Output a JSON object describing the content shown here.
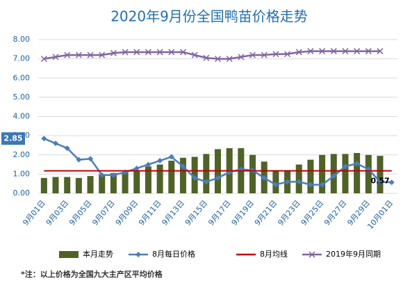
{
  "chart_data": {
    "type": "bar",
    "title": "2020年9月份全国鸭苗价格走势",
    "footnote": "*注：以上价格为全国九大主产区平均价格",
    "categories": [
      "9月01日",
      null,
      "9月03日",
      null,
      "9月05日",
      null,
      "9月07日",
      null,
      "9月09日",
      null,
      "9月11日",
      null,
      "9月13日",
      null,
      "9月15日",
      null,
      "9月17日",
      null,
      "9月19日",
      null,
      "9月21日",
      null,
      "9月23日",
      null,
      "9月25日",
      null,
      "9月27日",
      null,
      "9月29日",
      null,
      "10月01日"
    ],
    "ylim": [
      0,
      8
    ],
    "yticks": [
      {
        "value": 0,
        "label": "0.00"
      },
      {
        "value": 1,
        "label": "1.00"
      },
      {
        "value": 2,
        "label": "2.00"
      },
      {
        "value": 3,
        "label": "3.00"
      },
      {
        "value": 4,
        "label": "4.00"
      },
      {
        "value": 5,
        "label": "5.00"
      },
      {
        "value": 6,
        "label": "6.00"
      },
      {
        "value": 7,
        "label": "7.00"
      },
      {
        "value": 8,
        "label": "8.00"
      }
    ],
    "grid": true,
    "legend": "bottom",
    "series": [
      {
        "name": "本月走势",
        "type": "bar",
        "color": "#4f6228",
        "values": [
          0.8,
          0.85,
          0.85,
          0.8,
          0.9,
          1.0,
          1.05,
          1.1,
          1.2,
          1.4,
          1.5,
          1.7,
          1.85,
          1.9,
          2.05,
          2.3,
          2.35,
          2.35,
          2.0,
          1.65,
          1.2,
          1.2,
          1.5,
          1.75,
          2.0,
          2.05,
          2.05,
          2.1,
          2.0,
          1.95,
          null
        ]
      },
      {
        "name": "8月每日价格",
        "type": "line",
        "marker": "diamond",
        "color": "#4a7ebb",
        "values": [
          2.85,
          2.6,
          2.35,
          1.75,
          1.8,
          0.95,
          0.95,
          1.1,
          1.3,
          1.5,
          1.7,
          1.9,
          1.4,
          0.8,
          0.6,
          0.8,
          1.1,
          1.25,
          1.2,
          0.8,
          0.45,
          0.6,
          0.6,
          0.45,
          0.45,
          0.9,
          1.4,
          1.55,
          1.25,
          0.6,
          0.57
        ]
      },
      {
        "name": "8月均线",
        "type": "line",
        "color": "#c00000",
        "values": [
          1.17,
          1.17,
          1.17,
          1.17,
          1.17,
          1.17,
          1.17,
          1.17,
          1.17,
          1.17,
          1.17,
          1.17,
          1.17,
          1.17,
          1.17,
          1.17,
          1.17,
          1.17,
          1.17,
          1.17,
          1.17,
          1.17,
          1.17,
          1.17,
          1.17,
          1.17,
          1.17,
          1.17,
          1.17,
          1.17,
          1.17
        ]
      },
      {
        "name": "2019年9月同期",
        "type": "line",
        "marker": "x",
        "color": "#8064a2",
        "values": [
          7.0,
          7.1,
          7.2,
          7.2,
          7.2,
          7.2,
          7.3,
          7.35,
          7.35,
          7.35,
          7.35,
          7.35,
          7.35,
          7.2,
          7.05,
          7.0,
          7.0,
          7.1,
          7.2,
          7.2,
          7.25,
          7.25,
          7.35,
          7.4,
          7.4,
          7.4,
          7.4,
          7.4,
          7.4,
          7.4,
          null
        ]
      }
    ]
  }
}
